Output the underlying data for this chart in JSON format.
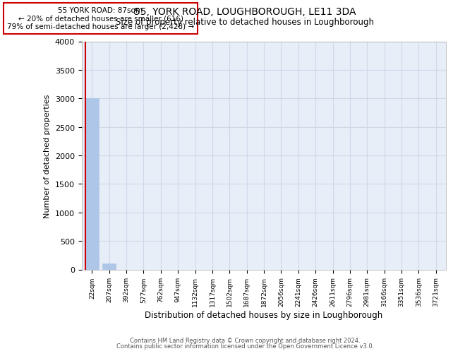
{
  "title": "55, YORK ROAD, LOUGHBOROUGH, LE11 3DA",
  "subtitle": "Size of property relative to detached houses in Loughborough",
  "xlabel": "Distribution of detached houses by size in Loughborough",
  "ylabel": "Number of detached properties",
  "categories": [
    "22sqm",
    "207sqm",
    "392sqm",
    "577sqm",
    "762sqm",
    "947sqm",
    "1132sqm",
    "1317sqm",
    "1502sqm",
    "1687sqm",
    "1872sqm",
    "2056sqm",
    "2241sqm",
    "2426sqm",
    "2611sqm",
    "2796sqm",
    "2981sqm",
    "3166sqm",
    "3351sqm",
    "3536sqm",
    "3721sqm"
  ],
  "values": [
    3000,
    110,
    0,
    0,
    0,
    0,
    0,
    0,
    0,
    0,
    0,
    0,
    0,
    0,
    0,
    0,
    0,
    0,
    0,
    0,
    0
  ],
  "bar_color": "#aec6e8",
  "bar_edge_color": "#aec6e8",
  "ylim": [
    0,
    4000
  ],
  "yticks": [
    0,
    500,
    1000,
    1500,
    2000,
    2500,
    3000,
    3500,
    4000
  ],
  "grid_color": "#d0d8e8",
  "bg_color": "#e8eef8",
  "annotation_line1": "55 YORK ROAD: 87sqm",
  "annotation_line2": "← 20% of detached houses are smaller (616)",
  "annotation_line3": "79% of semi-detached houses are larger (2,428) →",
  "footer_line1": "Contains HM Land Registry data © Crown copyright and database right 2024.",
  "footer_line2": "Contains public sector information licensed under the Open Government Licence v3.0."
}
